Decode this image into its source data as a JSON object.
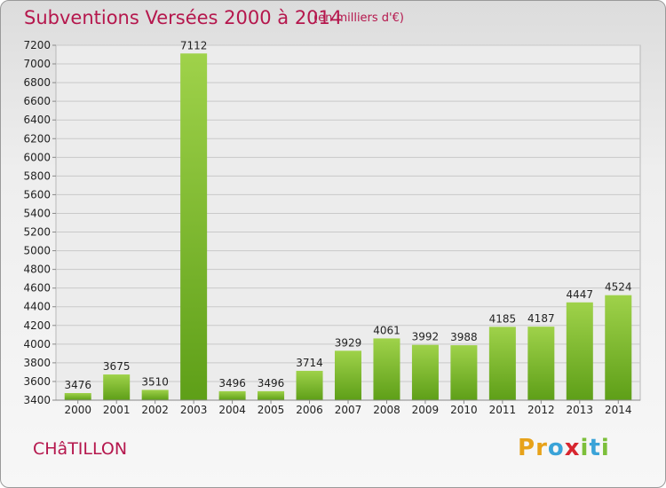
{
  "header": {
    "title": "Subventions Versées 2000 à 2014",
    "subtitle": "(en milliers d'€)"
  },
  "footer": {
    "city": "CHâTILLON",
    "logo_letters": [
      "P",
      "r",
      "o",
      "x",
      "i",
      "t",
      "i"
    ],
    "logo_colors": [
      "#e7a21a",
      "#e7a21a",
      "#3aa3d8",
      "#d7262f",
      "#7cbf3a",
      "#3aa3d8",
      "#7cbf3a"
    ]
  },
  "colors": {
    "bar_light": "#9fd24a",
    "bar_dark": "#5e9f18",
    "title": "#b5174d"
  },
  "chart_data": {
    "type": "bar",
    "categories": [
      "2000",
      "2001",
      "2002",
      "2003",
      "2004",
      "2005",
      "2006",
      "2007",
      "2008",
      "2009",
      "2010",
      "2011",
      "2012",
      "2013",
      "2014"
    ],
    "values": [
      3476,
      3675,
      3510,
      7112,
      3496,
      3496,
      3714,
      3929,
      4061,
      3992,
      3988,
      4185,
      4187,
      4447,
      4524
    ],
    "title": "Subventions Versées 2000 à 2014",
    "ylim": [
      3400,
      7200
    ],
    "yticks": [
      3400,
      3600,
      3800,
      4000,
      4200,
      4400,
      4600,
      4800,
      5000,
      5200,
      5400,
      5600,
      5800,
      6000,
      6200,
      6400,
      6600,
      6800,
      7000,
      7200
    ],
    "grid": true
  }
}
